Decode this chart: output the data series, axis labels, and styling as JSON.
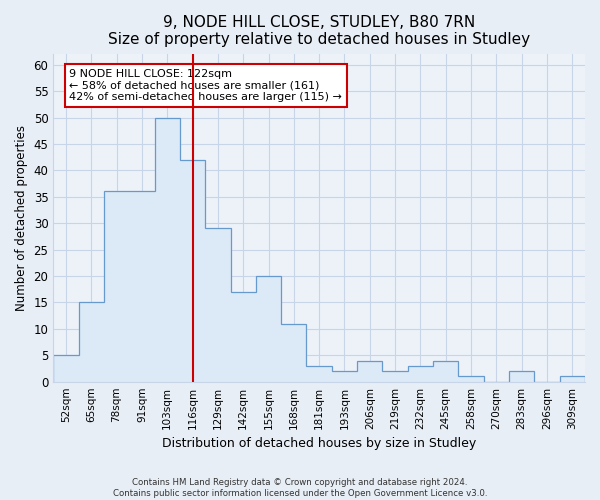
{
  "title1": "9, NODE HILL CLOSE, STUDLEY, B80 7RN",
  "title2": "Size of property relative to detached houses in Studley",
  "xlabel": "Distribution of detached houses by size in Studley",
  "ylabel": "Number of detached properties",
  "categories": [
    "52sqm",
    "65sqm",
    "78sqm",
    "91sqm",
    "103sqm",
    "116sqm",
    "129sqm",
    "142sqm",
    "155sqm",
    "168sqm",
    "181sqm",
    "193sqm",
    "206sqm",
    "219sqm",
    "232sqm",
    "245sqm",
    "258sqm",
    "270sqm",
    "283sqm",
    "296sqm",
    "309sqm"
  ],
  "values": [
    5,
    15,
    36,
    36,
    50,
    42,
    29,
    17,
    20,
    11,
    3,
    2,
    4,
    2,
    3,
    4,
    1,
    0,
    2,
    0,
    1
  ],
  "bar_fill_color": "#dce9f7",
  "bar_edge_color": "#6699cc",
  "annotation_line1": "9 NODE HILL CLOSE: 122sqm",
  "annotation_line2": "← 58% of detached houses are smaller (161)",
  "annotation_line3": "42% of semi-detached houses are larger (115) →",
  "annotation_box_color": "#ffffff",
  "annotation_box_edge": "#cc0000",
  "vline_color": "#cc0000",
  "vline_x": 5.5,
  "ylim": [
    0,
    62
  ],
  "yticks": [
    0,
    5,
    10,
    15,
    20,
    25,
    30,
    35,
    40,
    45,
    50,
    55,
    60
  ],
  "footer1": "Contains HM Land Registry data © Crown copyright and database right 2024.",
  "footer2": "Contains public sector information licensed under the Open Government Licence v3.0.",
  "fig_bg_color": "#e8eef6",
  "plot_bg_color": "#edf2f9",
  "grid_color": "#c8d4e8",
  "title1_fontsize": 11,
  "title2_fontsize": 10
}
